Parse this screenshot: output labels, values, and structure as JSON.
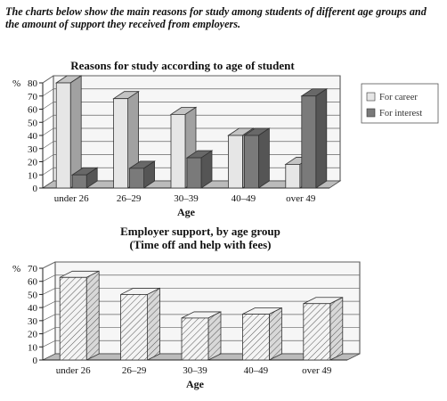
{
  "intro": "The charts below show the main reasons for study among students of different age groups and the amount of support they received from employers.",
  "chart_data": [
    {
      "type": "bar",
      "title": "Reasons for study according to age of student",
      "xlabel": "Age",
      "ylabel": "%",
      "ylim": [
        0,
        80
      ],
      "yticks": [
        0,
        10,
        20,
        30,
        40,
        50,
        60,
        70,
        80
      ],
      "categories": [
        "under 26",
        "26–29",
        "30–39",
        "40–49",
        "over 49"
      ],
      "series": [
        {
          "name": "For career",
          "values": [
            80,
            68,
            56,
            40,
            18
          ]
        },
        {
          "name": "For interest",
          "values": [
            10,
            15,
            23,
            40,
            70
          ]
        }
      ],
      "legend_position": "right",
      "grid": true,
      "colors": {
        "For career": "#e6e6e6",
        "For interest": "#7a7a7a"
      }
    },
    {
      "type": "bar",
      "title": "Employer support, by age group",
      "subtitle": "(Time off and help with fees)",
      "xlabel": "Age",
      "ylabel": "%",
      "ylim": [
        0,
        70
      ],
      "yticks": [
        0,
        10,
        20,
        30,
        40,
        50,
        60,
        70
      ],
      "categories": [
        "under 26",
        "26–29",
        "30–39",
        "40–49",
        "over 49"
      ],
      "series": [
        {
          "values": [
            63,
            50,
            32,
            35,
            43
          ]
        }
      ],
      "grid": true,
      "fill": "hatched"
    }
  ]
}
